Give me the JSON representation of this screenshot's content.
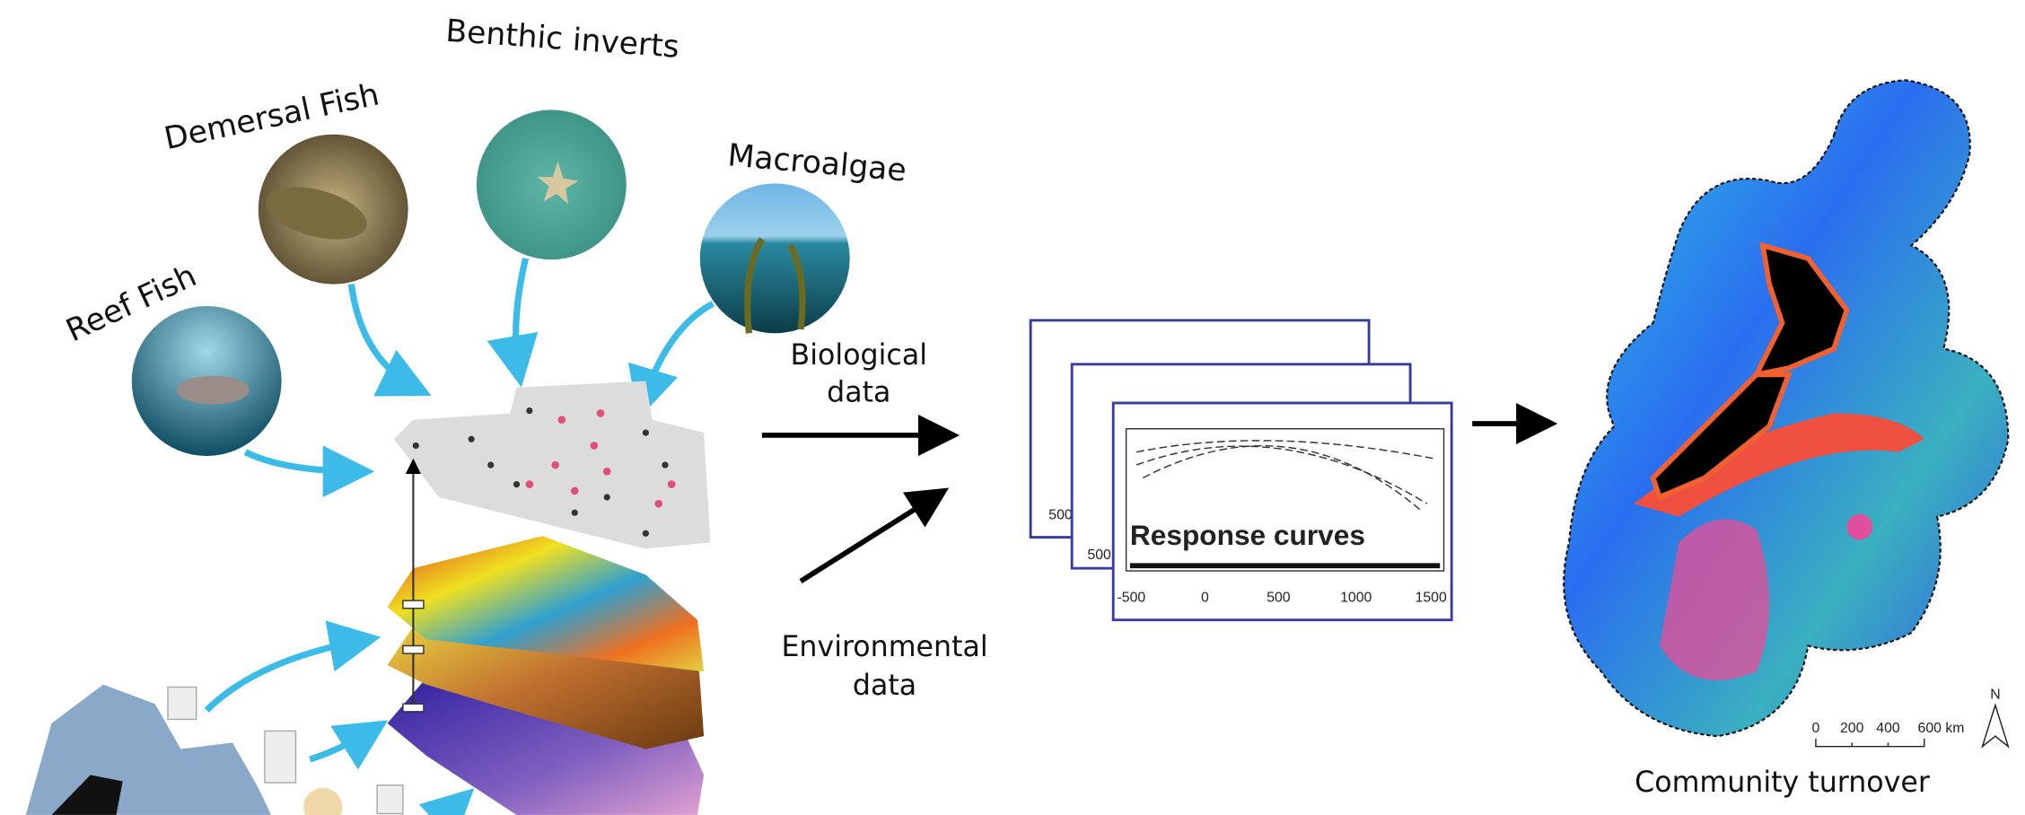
{
  "taxa": {
    "reef_fish": "Reef Fish",
    "demersal_fish": "Demersal Fish",
    "benthic_inverts": "Benthic inverts",
    "macroalgae": "Macroalgae"
  },
  "inputs": {
    "biological": [
      "Biological",
      "data"
    ],
    "environmental": [
      "Environmental",
      "data"
    ]
  },
  "response_curves": {
    "title": "Response curves",
    "x_ticks": [
      "-500",
      "0",
      "500",
      "1000",
      "1500"
    ],
    "back_y_labels": [
      "500",
      "500"
    ]
  },
  "output": {
    "title": "Community turnover",
    "scale_ticks": [
      "0",
      "200",
      "400",
      "600 km"
    ],
    "north": "N"
  }
}
